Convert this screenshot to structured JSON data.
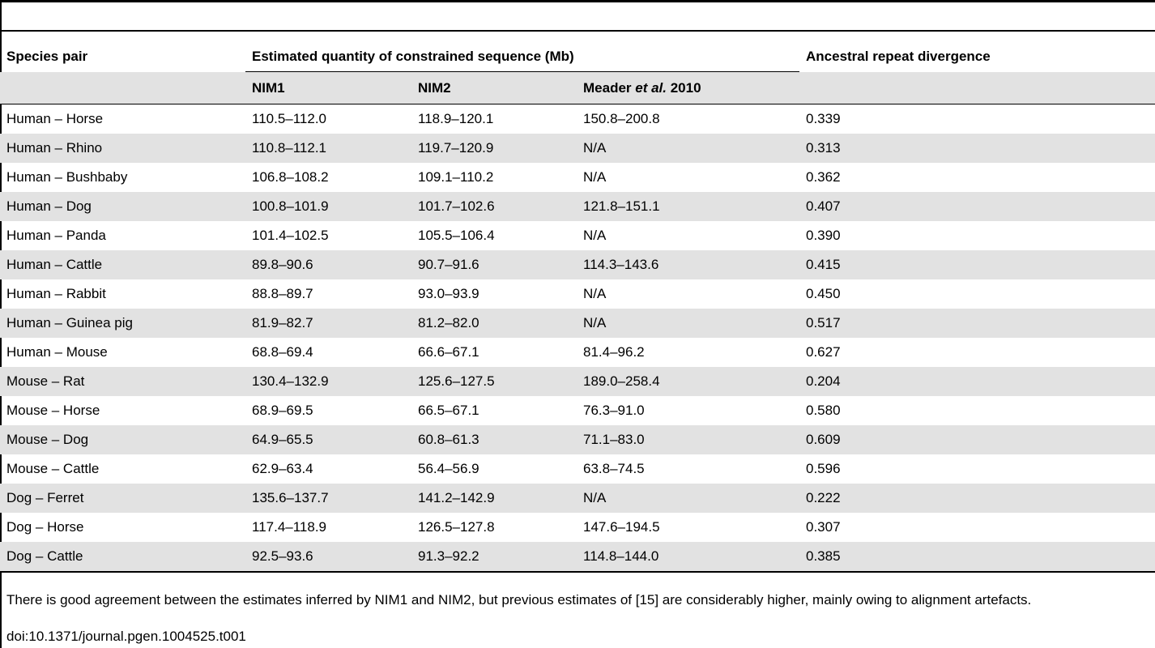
{
  "header": {
    "col_species": "Species pair",
    "group_title": "Estimated quantity of constrained sequence (Mb)",
    "col_ancestral": "Ancestral repeat divergence",
    "sub_nim1": "NIM1",
    "sub_nim2": "NIM2",
    "sub_meader_pre": "Meader ",
    "sub_meader_etal": "et al.",
    "sub_meader_year": " 2010"
  },
  "rows": [
    {
      "pair": "Human – Horse",
      "nim1": "110.5–112.0",
      "nim2": "118.9–120.1",
      "meader": "150.8–200.8",
      "div": "0.339"
    },
    {
      "pair": "Human – Rhino",
      "nim1": "110.8–112.1",
      "nim2": "119.7–120.9",
      "meader": "N/A",
      "div": "0.313"
    },
    {
      "pair": "Human – Bushbaby",
      "nim1": "106.8–108.2",
      "nim2": "109.1–110.2",
      "meader": "N/A",
      "div": "0.362"
    },
    {
      "pair": "Human – Dog",
      "nim1": "100.8–101.9",
      "nim2": "101.7–102.6",
      "meader": "121.8–151.1",
      "div": "0.407"
    },
    {
      "pair": "Human – Panda",
      "nim1": "101.4–102.5",
      "nim2": "105.5–106.4",
      "meader": "N/A",
      "div": "0.390"
    },
    {
      "pair": "Human – Cattle",
      "nim1": "89.8–90.6",
      "nim2": "90.7–91.6",
      "meader": "114.3–143.6",
      "div": "0.415"
    },
    {
      "pair": "Human – Rabbit",
      "nim1": "88.8–89.7",
      "nim2": "93.0–93.9",
      "meader": "N/A",
      "div": "0.450"
    },
    {
      "pair": "Human – Guinea pig",
      "nim1": "81.9–82.7",
      "nim2": "81.2–82.0",
      "meader": "N/A",
      "div": "0.517"
    },
    {
      "pair": "Human – Mouse",
      "nim1": "68.8–69.4",
      "nim2": "66.6–67.1",
      "meader": "81.4–96.2",
      "div": "0.627"
    },
    {
      "pair": "Mouse – Rat",
      "nim1": "130.4–132.9",
      "nim2": "125.6–127.5",
      "meader": "189.0–258.4",
      "div": "0.204"
    },
    {
      "pair": "Mouse – Horse",
      "nim1": "68.9–69.5",
      "nim2": "66.5–67.1",
      "meader": "76.3–91.0",
      "div": "0.580"
    },
    {
      "pair": "Mouse – Dog",
      "nim1": "64.9–65.5",
      "nim2": "60.8–61.3",
      "meader": "71.1–83.0",
      "div": "0.609"
    },
    {
      "pair": "Mouse – Cattle",
      "nim1": "62.9–63.4",
      "nim2": "56.4–56.9",
      "meader": "63.8–74.5",
      "div": "0.596"
    },
    {
      "pair": "Dog – Ferret",
      "nim1": "135.6–137.7",
      "nim2": "141.2–142.9",
      "meader": "N/A",
      "div": "0.222"
    },
    {
      "pair": "Dog – Horse",
      "nim1": "117.4–118.9",
      "nim2": "126.5–127.8",
      "meader": "147.6–194.5",
      "div": "0.307"
    },
    {
      "pair": "Dog – Cattle",
      "nim1": "92.5–93.6",
      "nim2": "91.3–92.2",
      "meader": "114.8–144.0",
      "div": "0.385"
    }
  ],
  "footnote": "There is good agreement between the estimates inferred by NIM1 and NIM2, but previous estimates of [15] are considerably higher, mainly owing to alignment artefacts.",
  "doi": "doi:10.1371/journal.pgen.1004525.t001"
}
